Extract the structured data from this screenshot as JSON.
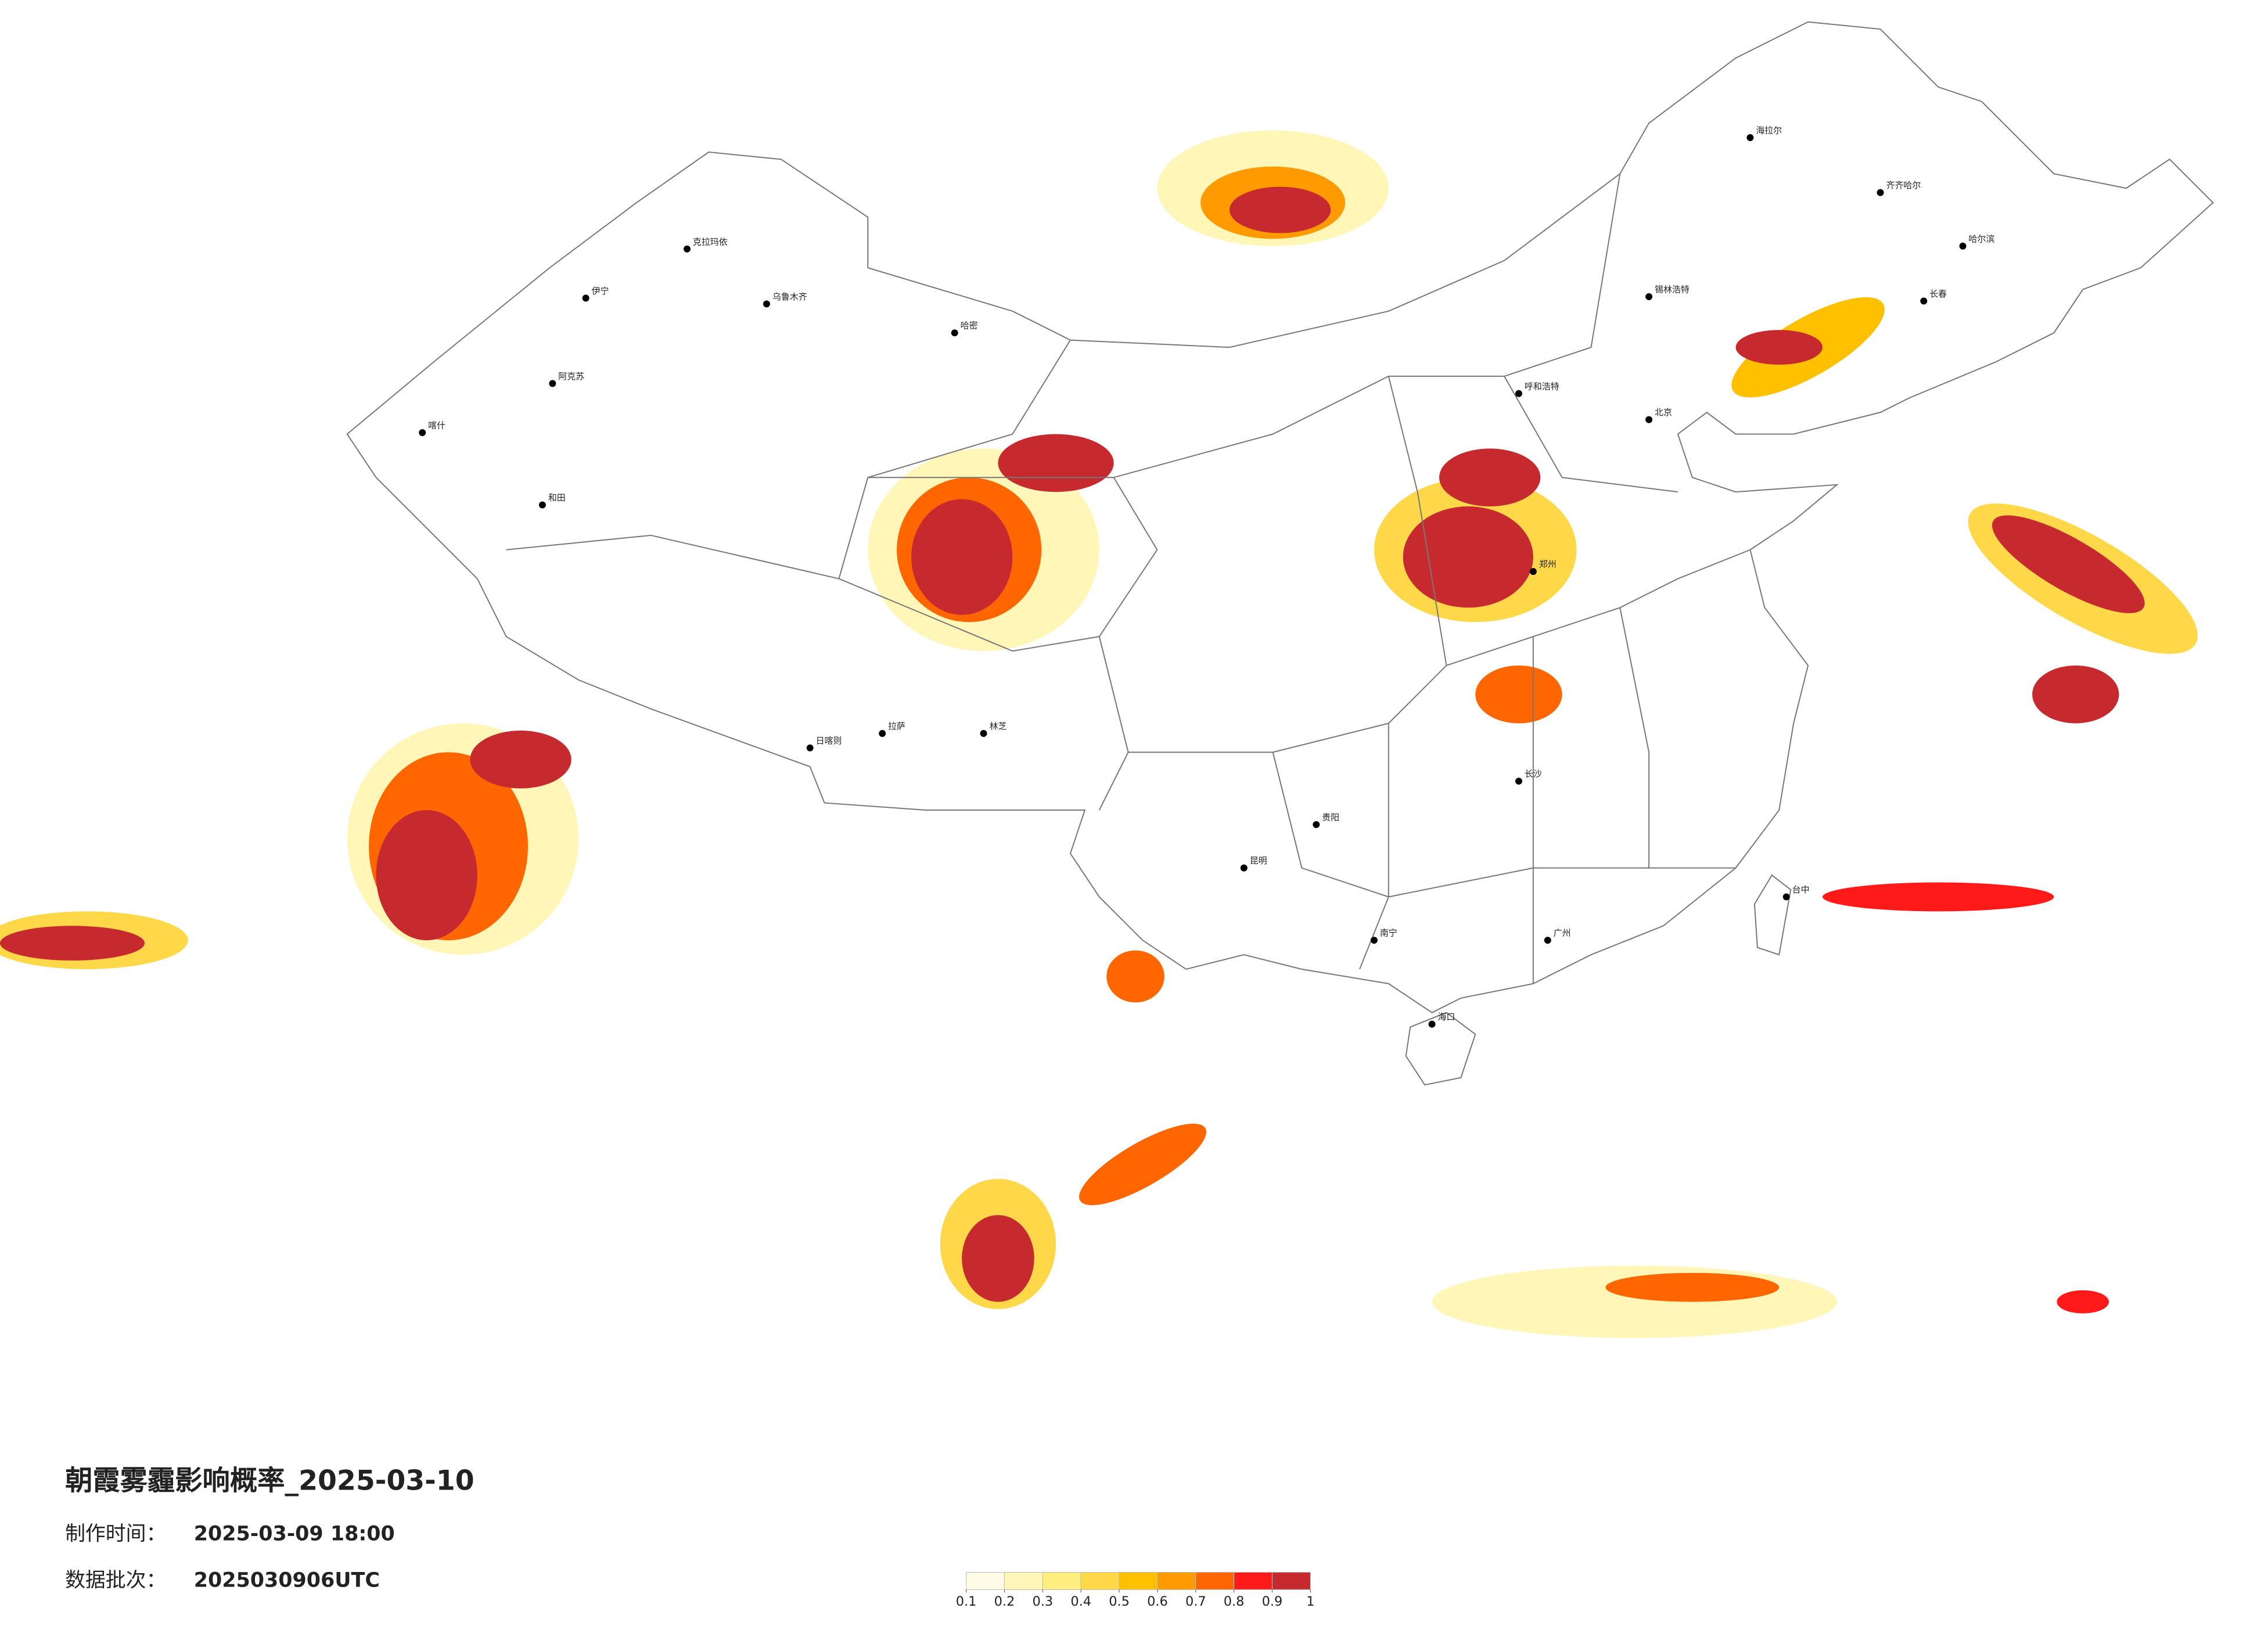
{
  "title": "朝霞雾霾影响概率_2025-03-10",
  "info": [
    {
      "label": "制作时间：",
      "value": "2025-03-09 18:00"
    },
    {
      "label": "数据批次：",
      "value": "2025030906UTC"
    }
  ],
  "legend": {
    "ticks": [
      0.1,
      0.2,
      0.3,
      0.4,
      0.5,
      0.6,
      0.7,
      0.8,
      0.9,
      1
    ],
    "colors": [
      "#fffbe6",
      "#fff6b8",
      "#ffee80",
      "#ffd84a",
      "#ffc000",
      "#ff9a00",
      "#ff6600",
      "#ff1a1a",
      "#c62a2f"
    ]
  },
  "cities": [
    {
      "name": "克拉玛依"
    },
    {
      "name": "伊宁"
    },
    {
      "name": "乌鲁木齐"
    },
    {
      "name": "哈密"
    },
    {
      "name": "阿克苏"
    },
    {
      "name": "喀什"
    },
    {
      "name": "和田"
    },
    {
      "name": "日喀则"
    },
    {
      "name": "拉萨"
    },
    {
      "name": "林芝"
    },
    {
      "name": "海拉尔"
    },
    {
      "name": "齐齐哈尔"
    },
    {
      "name": "哈尔滨"
    },
    {
      "name": "长春"
    },
    {
      "name": "锡林浩特"
    },
    {
      "name": "呼和浩特"
    },
    {
      "name": "北京"
    },
    {
      "name": "郑州"
    },
    {
      "name": "长沙"
    },
    {
      "name": "贵阳"
    },
    {
      "name": "昆明"
    },
    {
      "name": "南宁"
    },
    {
      "name": "广州"
    },
    {
      "name": "台中"
    },
    {
      "name": "海口"
    }
  ]
}
